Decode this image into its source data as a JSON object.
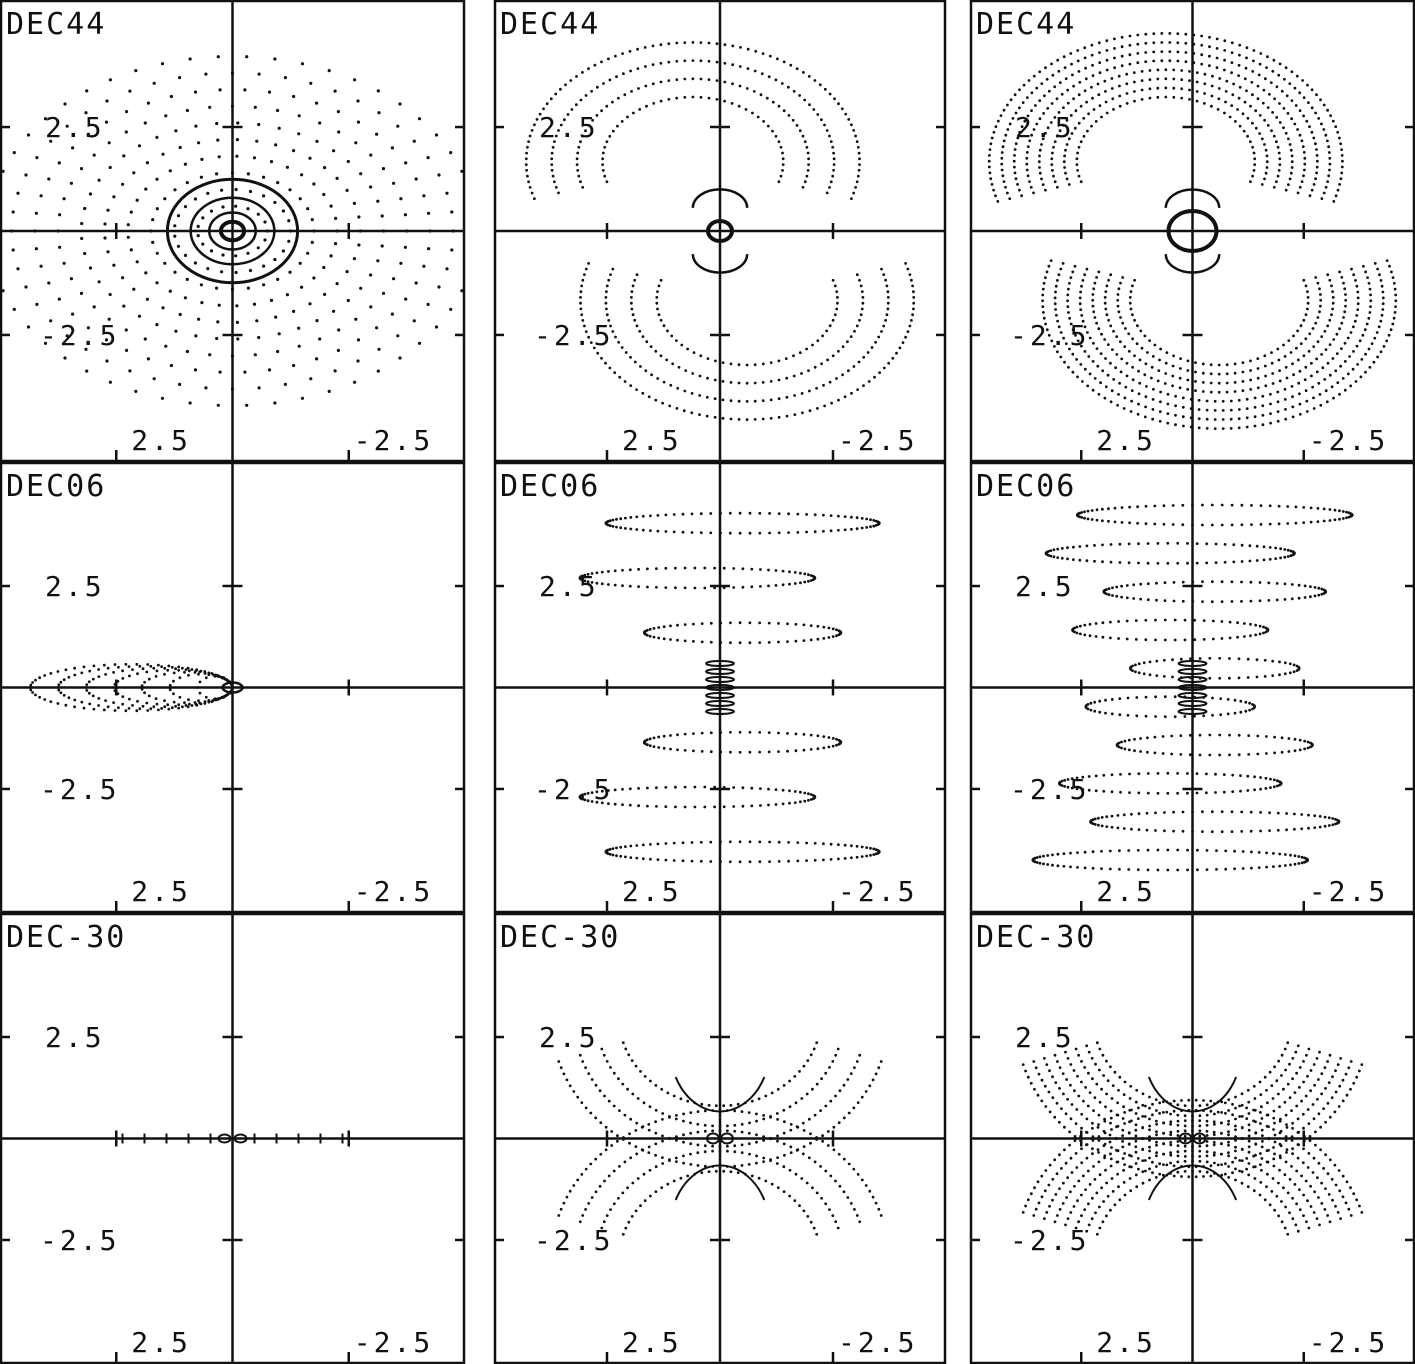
{
  "figure": {
    "tick_labels": {
      "y_pos": "2.5",
      "y_neg": "-2.5",
      "x_pos": "2.5",
      "x_neg": "-2.5"
    },
    "columns": [
      {
        "pattern": "rings",
        "rows": [
          {
            "label": "DEC44",
            "variant": "dec44"
          },
          {
            "label": "DEC06",
            "variant": "dec06"
          },
          {
            "label": "DEC-30",
            "variant": "dec30"
          }
        ]
      },
      {
        "pattern": "split",
        "rows": [
          {
            "label": "DEC44",
            "variant": "dec44"
          },
          {
            "label": "DEC06",
            "variant": "dec06"
          },
          {
            "label": "DEC-30",
            "variant": "dec30"
          }
        ]
      },
      {
        "pattern": "dense",
        "rows": [
          {
            "label": "DEC44",
            "variant": "dec44"
          },
          {
            "label": "DEC06",
            "variant": "dec06"
          },
          {
            "label": "DEC-30",
            "variant": "dec30"
          }
        ]
      }
    ]
  }
}
